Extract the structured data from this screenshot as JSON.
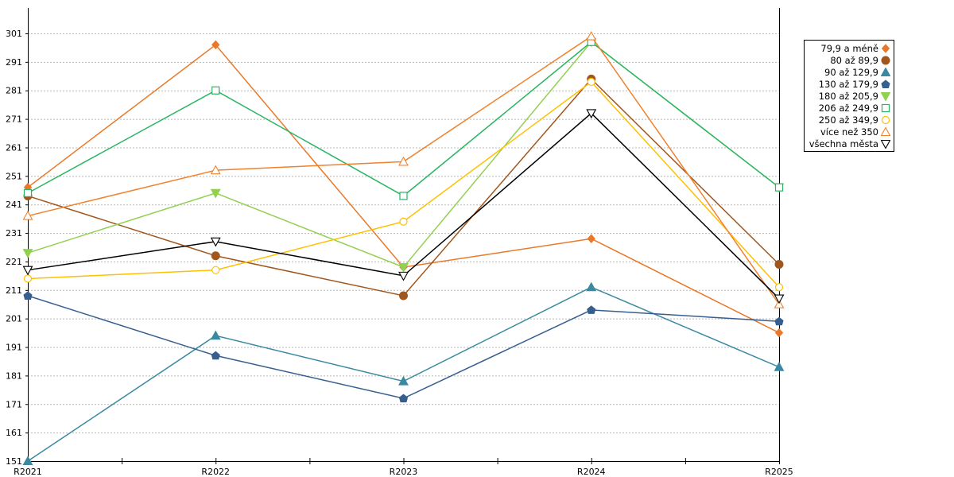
{
  "chart_data": {
    "type": "line",
    "categories": [
      "R2021",
      "R2022",
      "R2023",
      "R2024",
      "R2025"
    ],
    "ylim": [
      151,
      311
    ],
    "yticks": [
      151,
      161,
      171,
      181,
      191,
      201,
      211,
      221,
      231,
      241,
      251,
      261,
      271,
      281,
      291,
      301
    ],
    "grid": true,
    "legend_position": "top-right",
    "series": [
      {
        "name": "79,9 a méně",
        "values": [
          247,
          297,
          219,
          229,
          196
        ],
        "color": "#e8792a",
        "marker": "diamond",
        "filled": true
      },
      {
        "name": "80 až 89,9",
        "values": [
          244,
          223,
          209,
          285,
          220
        ],
        "color": "#a0561c",
        "marker": "circle",
        "filled": true
      },
      {
        "name": "90 až 129,9",
        "values": [
          151,
          195,
          179,
          212,
          184
        ],
        "color": "#3a89a1",
        "marker": "triangle-up",
        "filled": true
      },
      {
        "name": "130 až 179,9",
        "values": [
          209,
          188,
          173,
          204,
          200
        ],
        "color": "#365f8f",
        "marker": "pentagon",
        "filled": true
      },
      {
        "name": "180 až 205,9",
        "values": [
          224,
          245,
          219,
          298,
          247
        ],
        "color": "#92d050",
        "marker": "triangle-down",
        "filled": true
      },
      {
        "name": "206 až 249,9",
        "values": [
          245,
          281,
          244,
          298,
          247
        ],
        "color": "#2ab562",
        "marker": "square",
        "filled": false
      },
      {
        "name": "250 až 349,9",
        "values": [
          215,
          218,
          235,
          284,
          212
        ],
        "color": "#ffc000",
        "marker": "circle",
        "filled": false
      },
      {
        "name": "více než 350",
        "values": [
          237,
          253,
          256,
          300,
          206
        ],
        "color": "#f0822d",
        "marker": "triangle-up",
        "filled": false
      },
      {
        "name": "všechna města",
        "values": [
          218,
          228,
          216,
          273,
          208
        ],
        "color": "#000000",
        "marker": "triangle-down",
        "filled": false
      }
    ]
  }
}
